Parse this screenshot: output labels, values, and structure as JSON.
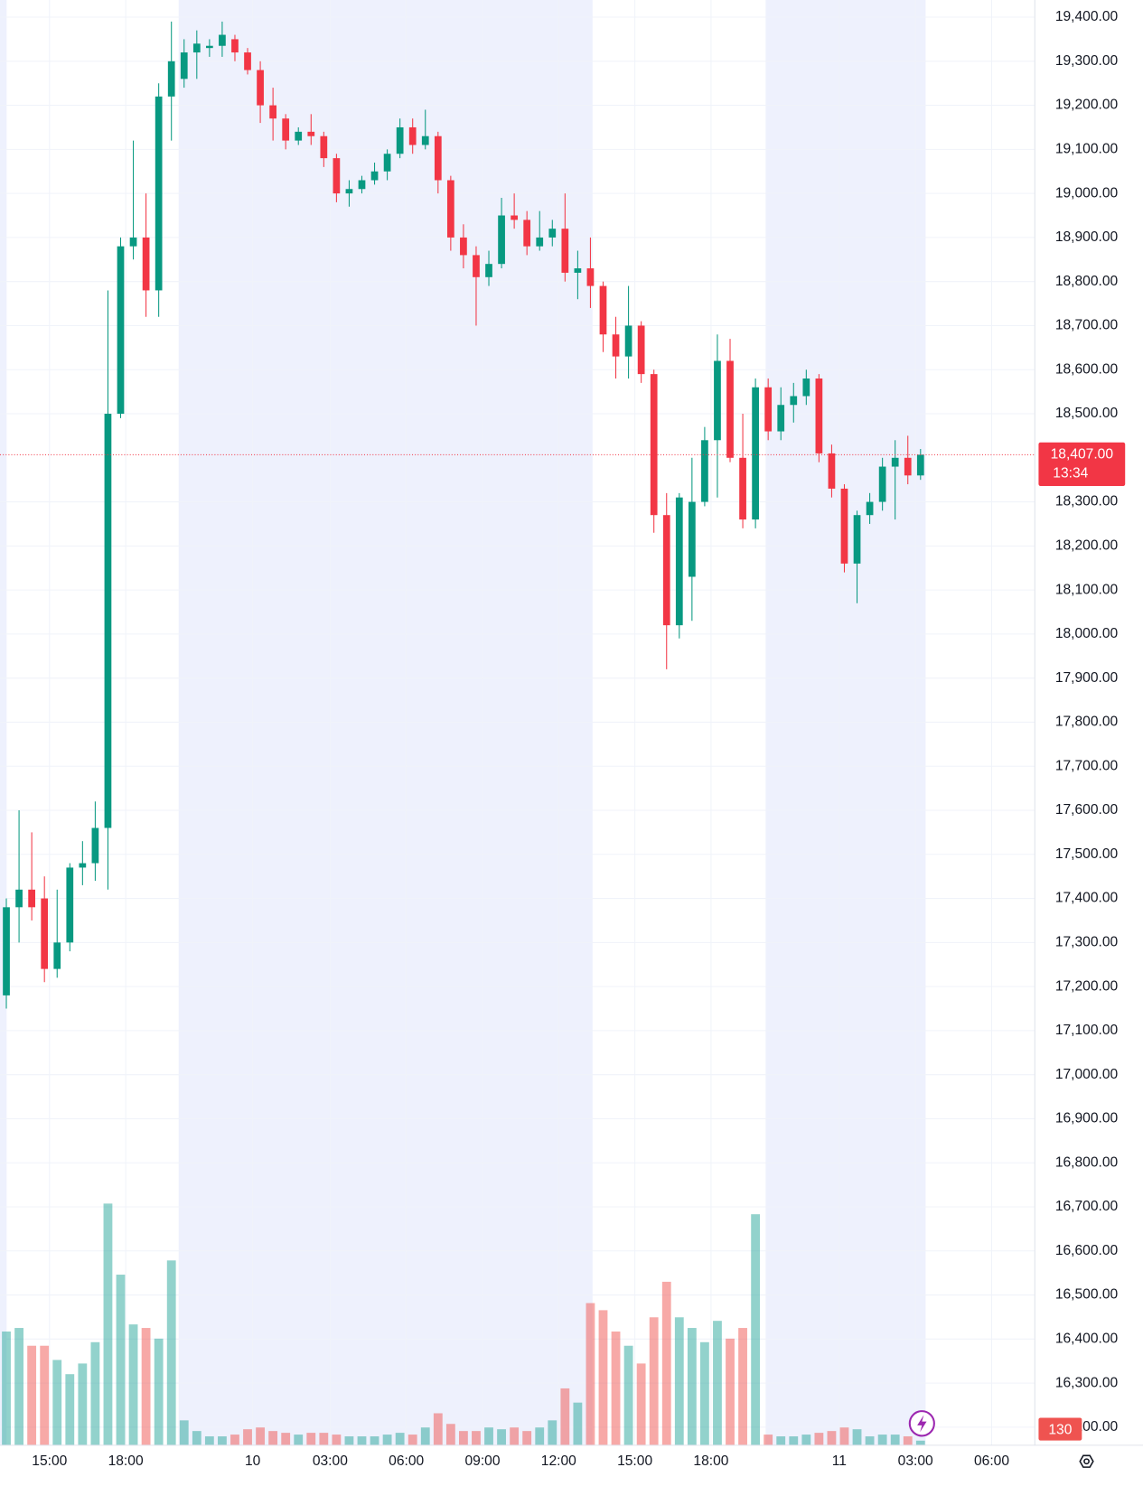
{
  "chart_data": {
    "type": "candlestick",
    "up_color": "#089981",
    "down_color": "#f23645",
    "volume_up_color": "#26a69a",
    "volume_down_color": "#ef5350",
    "highlight_color": "#eef1fd",
    "highlight_ranges": [
      [
        0,
        0.52
      ],
      [
        14.07,
        46.67
      ],
      [
        60.3,
        72.9
      ]
    ],
    "grid": true,
    "xlim": [
      0,
      81.5
    ],
    "ylim": [
      16159,
      19439
    ],
    "volume_lim": [
      0,
      8000
    ],
    "xticks": [
      {
        "value": 3.9,
        "label": "15:00"
      },
      {
        "value": 9.9,
        "label": "18:00"
      },
      {
        "value": 19.9,
        "label": "10"
      },
      {
        "value": 26,
        "label": "03:00"
      },
      {
        "value": 32,
        "label": "06:00"
      },
      {
        "value": 38,
        "label": "09:00"
      },
      {
        "value": 44,
        "label": "12:00"
      },
      {
        "value": 50,
        "label": "15:00"
      },
      {
        "value": 56,
        "label": "18:00"
      },
      {
        "value": 66.1,
        "label": "11"
      },
      {
        "value": 72.1,
        "label": "03:00"
      },
      {
        "value": 78.1,
        "label": "06:00"
      }
    ],
    "yticks": [
      {
        "value": 16200,
        "label": "16,200.00"
      },
      {
        "value": 16300,
        "label": "16,300.00"
      },
      {
        "value": 16400,
        "label": "16,400.00"
      },
      {
        "value": 16500,
        "label": "16,500.00"
      },
      {
        "value": 16600,
        "label": "16,600.00"
      },
      {
        "value": 16700,
        "label": "16,700.00"
      },
      {
        "value": 16800,
        "label": "16,800.00"
      },
      {
        "value": 16900,
        "label": "16,900.00"
      },
      {
        "value": 17000,
        "label": "17,000.00"
      },
      {
        "value": 17100,
        "label": "17,100.00"
      },
      {
        "value": 17200,
        "label": "17,200.00"
      },
      {
        "value": 17300,
        "label": "17,300.00"
      },
      {
        "value": 17400,
        "label": "17,400.00"
      },
      {
        "value": 17500,
        "label": "17,500.00"
      },
      {
        "value": 17600,
        "label": "17,600.00"
      },
      {
        "value": 17700,
        "label": "17,700.00"
      },
      {
        "value": 17800,
        "label": "17,800.00"
      },
      {
        "value": 17900,
        "label": "17,900.00"
      },
      {
        "value": 18000,
        "label": "18,000.00"
      },
      {
        "value": 18100,
        "label": "18,100.00"
      },
      {
        "value": 18200,
        "label": "18,200.00"
      },
      {
        "value": 18300,
        "label": "18,300.00"
      },
      {
        "value": 18500,
        "label": "18,500.00"
      },
      {
        "value": 18600,
        "label": "18,600.00"
      },
      {
        "value": 18700,
        "label": "18,700.00"
      },
      {
        "value": 18800,
        "label": "18,800.00"
      },
      {
        "value": 18900,
        "label": "18,900.00"
      },
      {
        "value": 19000,
        "label": "19,000.00"
      },
      {
        "value": 19100,
        "label": "19,100.00"
      },
      {
        "value": 19200,
        "label": "19,200.00"
      },
      {
        "value": 19300,
        "label": "19,300.00"
      },
      {
        "value": 19400,
        "label": "19,400.00"
      }
    ],
    "last_price": {
      "value": 18407,
      "label": "18,407.00"
    },
    "countdown": "13:34",
    "x": [
      0.5,
      1.5,
      2.5,
      3.5,
      4.5,
      5.5,
      6.5,
      7.5,
      8.5,
      9.5,
      10.5,
      11.5,
      12.5,
      13.5,
      14.5,
      15.5,
      16.5,
      17.5,
      18.5,
      19.5,
      20.5,
      21.5,
      22.5,
      23.5,
      24.5,
      25.5,
      26.5,
      27.5,
      28.5,
      29.5,
      30.5,
      31.5,
      32.5,
      33.5,
      34.5,
      35.5,
      36.5,
      37.5,
      38.5,
      39.5,
      40.5,
      41.5,
      42.5,
      43.5,
      44.5,
      45.5,
      46.5,
      47.5,
      48.5,
      49.5,
      50.5,
      51.5,
      52.5,
      53.5,
      54.5,
      55.5,
      56.5,
      57.5,
      58.5,
      59.5,
      60.5,
      61.5,
      62.5,
      63.5,
      64.5,
      65.5,
      66.5,
      67.5,
      68.5,
      69.5,
      70.5,
      71.5,
      72.5
    ],
    "open": [
      17180,
      17380,
      17420,
      17400,
      17240,
      17300,
      17470,
      17480,
      17560,
      18500,
      18880,
      18900,
      18780,
      19220,
      19260,
      19320,
      19330,
      19335,
      19350,
      19320,
      19280,
      19200,
      19170,
      19120,
      19140,
      19130,
      19080,
      19000,
      19010,
      19030,
      19050,
      19090,
      19150,
      19110,
      19130,
      19030,
      18900,
      18860,
      18810,
      18840,
      18950,
      18940,
      18880,
      18900,
      18920,
      18820,
      18830,
      18790,
      18680,
      18630,
      18700,
      18590,
      18270,
      18020,
      18130,
      18300,
      18440,
      18620,
      18400,
      18260,
      18560,
      18460,
      18520,
      18540,
      18580,
      18410,
      18330,
      18160,
      18270,
      18300,
      18380,
      18400,
      18360
    ],
    "high": [
      17400,
      17600,
      17550,
      17450,
      17420,
      17480,
      17530,
      17620,
      18780,
      18900,
      19120,
      19000,
      19250,
      19390,
      19350,
      19370,
      19350,
      19390,
      19360,
      19330,
      19300,
      19240,
      19180,
      19150,
      19180,
      19140,
      19090,
      19030,
      19040,
      19070,
      19100,
      19170,
      19170,
      19190,
      19140,
      19040,
      18930,
      18880,
      18870,
      18990,
      19000,
      18960,
      18960,
      18940,
      19000,
      18870,
      18900,
      18800,
      18720,
      18790,
      18710,
      18600,
      18320,
      18320,
      18400,
      18470,
      18680,
      18670,
      18500,
      18580,
      18580,
      18560,
      18570,
      18600,
      18590,
      18430,
      18340,
      18280,
      18320,
      18400,
      18440,
      18450,
      18420
    ],
    "low": [
      17150,
      17300,
      17350,
      17210,
      17220,
      17280,
      17430,
      17440,
      17420,
      18490,
      18850,
      18720,
      18720,
      19120,
      19240,
      19260,
      19310,
      19310,
      19300,
      19270,
      19160,
      19120,
      19100,
      19110,
      19110,
      19060,
      18980,
      18970,
      19000,
      19020,
      19030,
      19080,
      19090,
      19100,
      19000,
      18870,
      18830,
      18700,
      18790,
      18830,
      18920,
      18860,
      18870,
      18880,
      18800,
      18760,
      18740,
      18640,
      18580,
      18580,
      18570,
      18230,
      17920,
      17990,
      18030,
      18290,
      18310,
      18390,
      18240,
      18240,
      18440,
      18440,
      18480,
      18520,
      18390,
      18310,
      18140,
      18070,
      18250,
      18280,
      18260,
      18340,
      18350
    ],
    "close": [
      17380,
      17420,
      17380,
      17240,
      17300,
      17470,
      17480,
      17560,
      18500,
      18880,
      18900,
      18780,
      19220,
      19300,
      19320,
      19340,
      19335,
      19360,
      19320,
      19280,
      19200,
      19170,
      19120,
      19140,
      19130,
      19080,
      19000,
      19010,
      19030,
      19050,
      19090,
      19150,
      19110,
      19130,
      19030,
      18900,
      18860,
      18810,
      18840,
      18950,
      18940,
      18880,
      18900,
      18920,
      18820,
      18830,
      18790,
      18680,
      18630,
      18700,
      18590,
      18270,
      18020,
      18310,
      18300,
      18440,
      18620,
      18400,
      18260,
      18560,
      18460,
      18520,
      18540,
      18580,
      18410,
      18330,
      18160,
      18270,
      18300,
      18380,
      18400,
      18360,
      18407
    ],
    "volume": [
      3200,
      3300,
      2800,
      2800,
      2400,
      2000,
      2300,
      2900,
      6800,
      4800,
      3400,
      3300,
      3000,
      5200,
      700,
      400,
      250,
      250,
      300,
      450,
      500,
      400,
      350,
      300,
      350,
      350,
      300,
      250,
      250,
      250,
      300,
      350,
      300,
      500,
      900,
      600,
      400,
      400,
      500,
      450,
      500,
      400,
      500,
      700,
      1600,
      1200,
      4000,
      3800,
      3200,
      2800,
      2300,
      3600,
      4600,
      3600,
      3300,
      2900,
      3500,
      3000,
      3300,
      6500,
      300,
      250,
      250,
      300,
      350,
      400,
      500,
      450,
      250,
      300,
      300,
      250,
      130
    ]
  }
}
